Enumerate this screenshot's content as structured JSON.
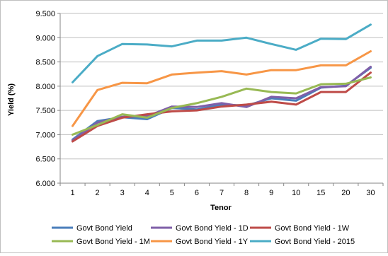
{
  "chart_data": {
    "type": "line",
    "title": "",
    "xlabel": "Tenor",
    "ylabel": "Yield (%)",
    "categories": [
      "1",
      "2",
      "3",
      "4",
      "5",
      "6",
      "7",
      "8",
      "9",
      "10",
      "15",
      "20",
      "30"
    ],
    "y_tick_labels": [
      "6.000",
      "6.500",
      "7.000",
      "7.500",
      "8.000",
      "8.500",
      "9.000",
      "9.500"
    ],
    "ylim": [
      6.0,
      9.5
    ],
    "y_tick_step": 0.5,
    "grid": true,
    "legend_position": "bottom",
    "series": [
      {
        "name": "Govt Bond Yield",
        "color": "#4a7ebb",
        "values": [
          6.9,
          7.28,
          7.36,
          7.32,
          7.55,
          7.52,
          7.62,
          7.6,
          7.75,
          7.7,
          7.97,
          8.01,
          8.38
        ]
      },
      {
        "name": "Govt Bond Yield - 1D",
        "color": "#7f5fa8",
        "values": [
          6.88,
          7.25,
          7.37,
          7.38,
          7.58,
          7.57,
          7.65,
          7.57,
          7.78,
          7.75,
          7.98,
          8.0,
          8.4
        ]
      },
      {
        "name": "Govt Bond Yield - 1W",
        "color": "#be4b48",
        "values": [
          6.86,
          7.18,
          7.35,
          7.42,
          7.48,
          7.5,
          7.58,
          7.62,
          7.68,
          7.62,
          7.88,
          7.88,
          8.28
        ]
      },
      {
        "name": "Govt Bond Yield - 1M",
        "color": "#98b954",
        "values": [
          7.0,
          7.2,
          7.42,
          7.35,
          7.55,
          7.65,
          7.78,
          7.95,
          7.88,
          7.85,
          8.04,
          8.05,
          8.18
        ]
      },
      {
        "name": "Govt Bond Yield - 1Y",
        "color": "#f79646",
        "values": [
          7.18,
          7.92,
          8.07,
          8.06,
          8.24,
          8.28,
          8.31,
          8.24,
          8.33,
          8.33,
          8.43,
          8.43,
          8.72
        ]
      },
      {
        "name": "Govt Bond Yield - 2015",
        "color": "#4bacc6",
        "values": [
          8.08,
          8.62,
          8.87,
          8.86,
          8.82,
          8.94,
          8.94,
          9.0,
          8.87,
          8.75,
          8.98,
          8.97,
          9.27
        ]
      }
    ]
  }
}
